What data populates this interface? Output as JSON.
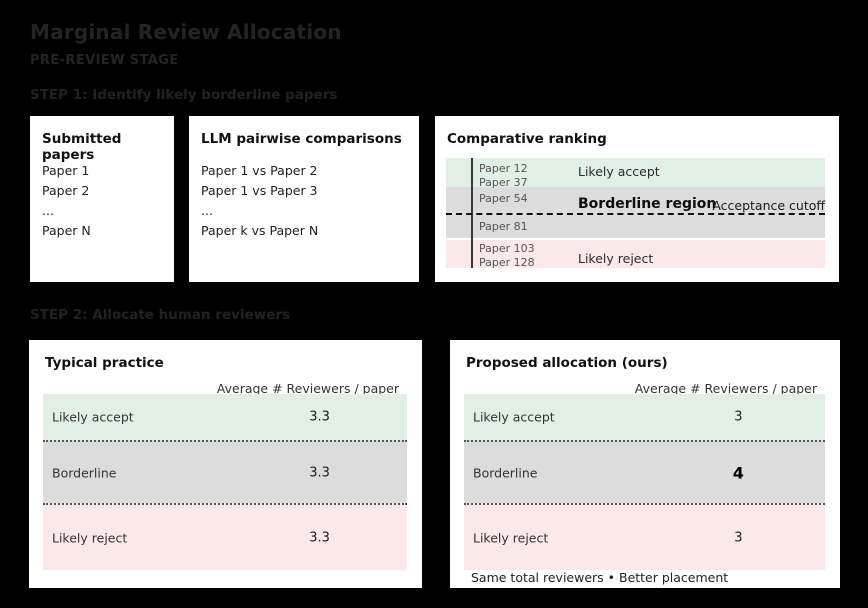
{
  "page": {
    "title": "Marginal Review Allocation",
    "subtitle": "PRE-REVIEW STAGE",
    "step1_label": "STEP 1: Identify likely borderline papers",
    "step2_label": "STEP 2: Allocate human reviewers"
  },
  "submitted": {
    "title": "Submitted papers",
    "items": [
      "Paper 1",
      "Paper 2",
      "...",
      "Paper N"
    ]
  },
  "pairwise": {
    "title": "LLM pairwise comparisons",
    "items": [
      "Paper 1 vs Paper 2",
      "Paper 1 vs Paper 3",
      "...",
      "Paper k vs Paper N"
    ]
  },
  "ranking": {
    "title": "Comparative ranking",
    "accept_papers": [
      "Paper 12",
      "Paper 37"
    ],
    "borderline_papers_above_cutoff": [
      "Paper 54"
    ],
    "borderline_papers_below_cutoff": [
      "Paper 81"
    ],
    "reject_papers": [
      "Paper 103",
      "Paper 128"
    ],
    "accept_label": "Likely accept",
    "borderline_label": "Borderline region",
    "cutoff_label": "Acceptance cutoff",
    "reject_label": "Likely reject"
  },
  "typical": {
    "title": "Typical practice",
    "header": "Average # Reviewers / paper",
    "rows": [
      {
        "label": "Likely accept",
        "value": "3.3",
        "tone": "accept",
        "emphasis": false
      },
      {
        "label": "Borderline",
        "value": "3.3",
        "tone": "borderline",
        "emphasis": false
      },
      {
        "label": "Likely reject",
        "value": "3.3",
        "tone": "reject",
        "emphasis": false
      }
    ]
  },
  "proposed": {
    "title": "Proposed allocation (ours)",
    "header": "Average # Reviewers / paper",
    "rows": [
      {
        "label": "Likely accept",
        "value": "3",
        "tone": "accept",
        "emphasis": false
      },
      {
        "label": "Borderline",
        "value": "4",
        "tone": "borderline",
        "emphasis": true
      },
      {
        "label": "Likely reject",
        "value": "3",
        "tone": "reject",
        "emphasis": false
      }
    ],
    "footer": "Same total reviewers • Better placement"
  },
  "colors": {
    "background": "#000000",
    "heading_text": "#242424",
    "panel": "#ffffff",
    "accept_band": "#e1efe5",
    "borderline_band": "#dcdcdc",
    "reject_band": "#fbe9e9",
    "muted_paper_text": "#555555",
    "body_text": "#333333"
  }
}
